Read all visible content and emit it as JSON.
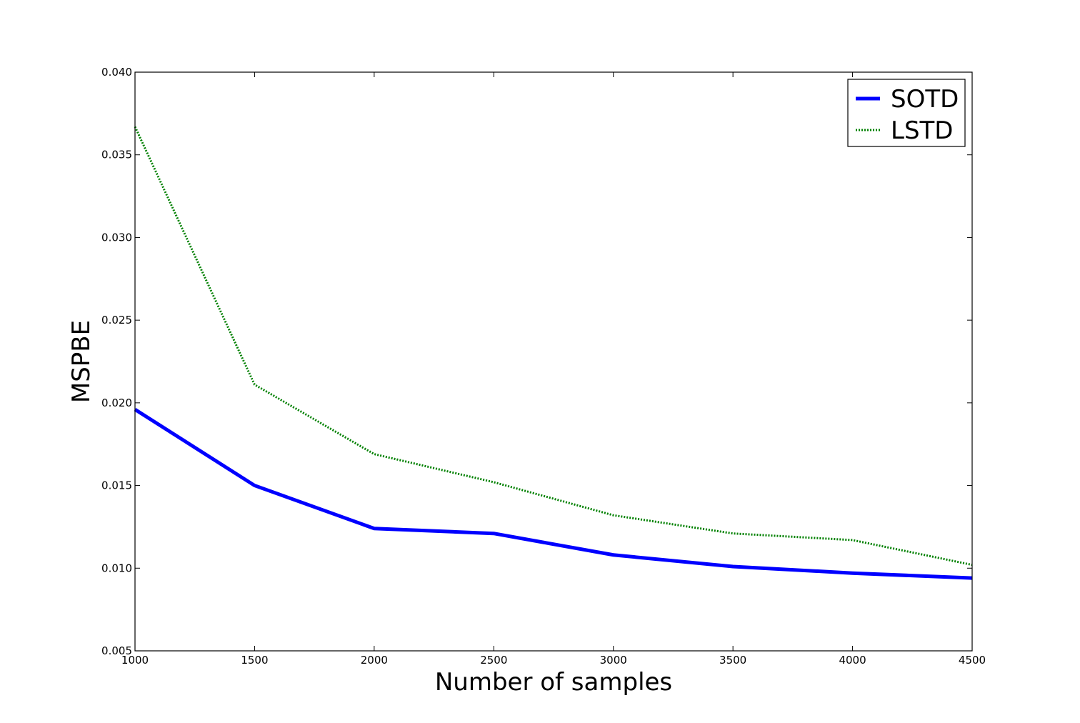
{
  "chart_data": {
    "type": "line",
    "title": "",
    "xlabel": "Number of samples",
    "ylabel": "MSPBE",
    "xlim": [
      1000,
      4500
    ],
    "ylim": [
      0.005,
      0.04
    ],
    "xticks": [
      1000,
      1500,
      2000,
      2500,
      3000,
      3500,
      4000,
      4500
    ],
    "xtick_labels": [
      "1000",
      "1500",
      "2000",
      "2500",
      "3000",
      "3500",
      "4000",
      "4500"
    ],
    "yticks": [
      0.005,
      0.01,
      0.015,
      0.02,
      0.025,
      0.03,
      0.035,
      0.04
    ],
    "ytick_labels": [
      "0.005",
      "0.010",
      "0.015",
      "0.020",
      "0.025",
      "0.030",
      "0.035",
      "0.040"
    ],
    "grid": false,
    "legend_position": "top-right",
    "x": [
      1000,
      1500,
      2000,
      2500,
      3000,
      3500,
      4000,
      4500
    ],
    "series": [
      {
        "name": "SOTD",
        "values": [
          0.0196,
          0.015,
          0.0124,
          0.0121,
          0.0108,
          0.0101,
          0.0097,
          0.0094
        ],
        "color": "#0000ff",
        "style": "solid"
      },
      {
        "name": "LSTD",
        "values": [
          0.0367,
          0.0211,
          0.0169,
          0.0152,
          0.0132,
          0.0121,
          0.0117,
          0.0102
        ],
        "color": "#008000",
        "style": "dotted"
      }
    ]
  }
}
